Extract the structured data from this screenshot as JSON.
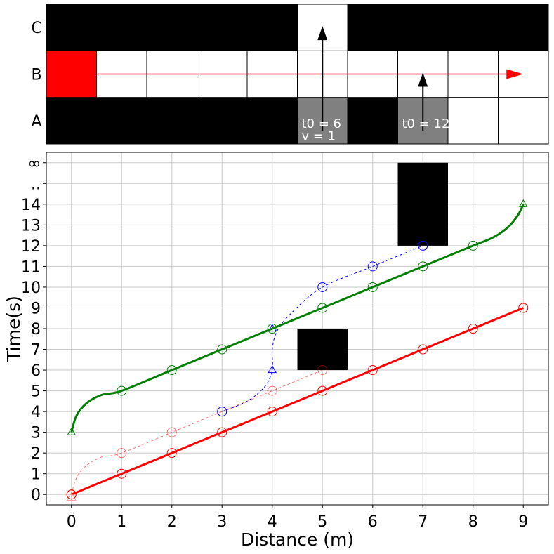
{
  "chart_data": [
    {
      "type": "grid",
      "rows": [
        "A",
        "B",
        "C"
      ],
      "columns": 10,
      "cells": {
        "C": [
          "black",
          "black",
          "black",
          "black",
          "black",
          "white",
          "black",
          "black",
          "black",
          "black"
        ],
        "B": [
          "red",
          "white",
          "white",
          "white",
          "white",
          "white",
          "white",
          "white",
          "white",
          "white"
        ],
        "A": [
          "black",
          "black",
          "black",
          "black",
          "black",
          "gray",
          "black",
          "gray",
          "white",
          "white"
        ]
      },
      "path_arrow": {
        "row": "B",
        "from_col": 1,
        "to_col": 9.5,
        "color": "#ff0000"
      },
      "vehicles": [
        {
          "col": 5,
          "start_row": "A",
          "arrow_to_row": "C",
          "label_t0": "t0 = 6",
          "label_v": "v = 1"
        },
        {
          "col": 7,
          "start_row": "A",
          "arrow_to_row": "B",
          "label_t0": "t0 = 12"
        }
      ]
    },
    {
      "type": "line",
      "xlabel": "Distance (m)",
      "ylabel": "Time(s)",
      "xlim": [
        -0.5,
        9.5
      ],
      "ylim": [
        -0.5,
        16.5
      ],
      "x_ticks": [
        0,
        1,
        2,
        3,
        4,
        5,
        6,
        7,
        8,
        9
      ],
      "y_ticks": [
        {
          "v": 0,
          "label": "0"
        },
        {
          "v": 1,
          "label": "1"
        },
        {
          "v": 2,
          "label": "2"
        },
        {
          "v": 3,
          "label": "3"
        },
        {
          "v": 4,
          "label": "4"
        },
        {
          "v": 5,
          "label": "5"
        },
        {
          "v": 6,
          "label": "6"
        },
        {
          "v": 7,
          "label": "7"
        },
        {
          "v": 8,
          "label": "8"
        },
        {
          "v": 9,
          "label": "9"
        },
        {
          "v": 10,
          "label": "10"
        },
        {
          "v": 11,
          "label": "11"
        },
        {
          "v": 12,
          "label": "12"
        },
        {
          "v": 13,
          "label": "13"
        },
        {
          "v": 14,
          "label": "14"
        },
        {
          "v": 15,
          "label": ".."
        },
        {
          "v": 16,
          "label": "∞"
        }
      ],
      "grid": true,
      "obstacles": [
        {
          "x": [
            4.5,
            5.5
          ],
          "y": [
            6,
            8
          ]
        },
        {
          "x": [
            6.5,
            7.5
          ],
          "y": [
            12,
            16
          ]
        }
      ],
      "series": [
        {
          "name": "red-solid",
          "color": "#ff0000",
          "style": "solid",
          "points": [
            [
              0,
              0
            ],
            [
              1,
              1
            ],
            [
              2,
              2
            ],
            [
              3,
              3
            ],
            [
              4,
              4
            ],
            [
              5,
              5
            ],
            [
              6,
              6
            ],
            [
              7,
              7
            ],
            [
              8,
              8
            ],
            [
              9,
              9
            ]
          ],
          "markers": [
            [
              0,
              0
            ],
            [
              1,
              1
            ],
            [
              2,
              2
            ],
            [
              3,
              3
            ],
            [
              4,
              4
            ],
            [
              5,
              5
            ],
            [
              6,
              6
            ],
            [
              7,
              7
            ],
            [
              8,
              8
            ],
            [
              9,
              9
            ]
          ]
        },
        {
          "name": "red-dashed",
          "color": "#ff0000",
          "style": "dashed",
          "points": [
            [
              0,
              0
            ],
            [
              0.1,
              0.8
            ],
            [
              0.3,
              1.4
            ],
            [
              0.6,
              1.8
            ],
            [
              1,
              2
            ],
            [
              2,
              3
            ],
            [
              3,
              4
            ],
            [
              4,
              5
            ],
            [
              5,
              6
            ]
          ],
          "markers": [
            [
              1,
              2
            ],
            [
              2,
              3
            ],
            [
              3,
              4
            ],
            [
              4,
              5
            ],
            [
              5,
              6
            ]
          ],
          "start_triangle": [
            0,
            0
          ]
        },
        {
          "name": "blue-dashed",
          "color": "#0000ff",
          "style": "dashed",
          "points": [
            [
              3,
              4
            ],
            [
              3.5,
              4.5
            ],
            [
              3.85,
              5.2
            ],
            [
              4,
              6
            ],
            [
              4,
              7
            ],
            [
              4.1,
              7.9
            ],
            [
              4.4,
              8.8
            ],
            [
              5,
              10
            ],
            [
              6,
              11
            ],
            [
              7,
              12
            ]
          ],
          "markers": [
            [
              3,
              4
            ],
            [
              5,
              10
            ],
            [
              6,
              11
            ],
            [
              7,
              12
            ]
          ],
          "triangles": [
            [
              4,
              6
            ],
            [
              4,
              8
            ]
          ]
        },
        {
          "name": "green-solid",
          "color": "#008000",
          "style": "solid",
          "points": [
            [
              0,
              3
            ],
            [
              0.1,
              3.8
            ],
            [
              0.3,
              4.4
            ],
            [
              0.6,
              4.8
            ],
            [
              1,
              5
            ],
            [
              2,
              6
            ],
            [
              3,
              7
            ],
            [
              4,
              8
            ],
            [
              5,
              9
            ],
            [
              6,
              10
            ],
            [
              7,
              11
            ],
            [
              8,
              12
            ],
            [
              8.4,
              12.4
            ],
            [
              8.7,
              12.9
            ],
            [
              8.9,
              13.5
            ],
            [
              9,
              14
            ]
          ],
          "markers": [
            [
              1,
              5
            ],
            [
              2,
              6
            ],
            [
              3,
              7
            ],
            [
              4,
              8
            ],
            [
              5,
              9
            ],
            [
              6,
              10
            ],
            [
              7,
              11
            ],
            [
              8,
              12
            ]
          ],
          "triangles": [
            [
              0,
              3
            ],
            [
              9,
              14
            ]
          ]
        }
      ]
    }
  ]
}
